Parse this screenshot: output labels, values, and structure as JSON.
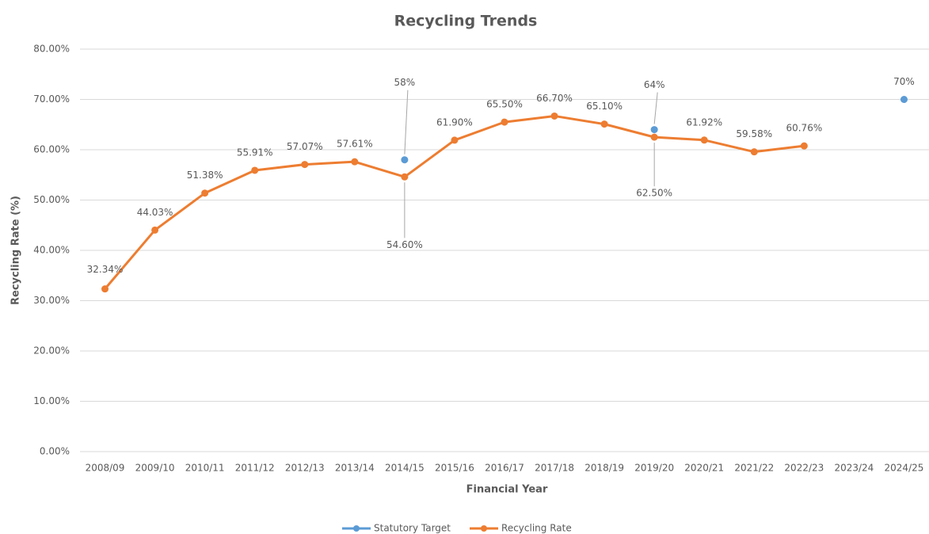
{
  "chart_data": {
    "type": "line",
    "title": "Recycling Trends",
    "x_label": "Financial Year",
    "y_label": "Recycling Rate (%)",
    "categories": [
      "2008/09",
      "2009/10",
      "2010/11",
      "2011/12",
      "2012/13",
      "2013/14",
      "2014/15",
      "2015/16",
      "2016/17",
      "2017/18",
      "2018/19",
      "2019/20",
      "2020/21",
      "2021/22",
      "2022/23",
      "2023/24",
      "2024/25"
    ],
    "series": [
      {
        "name": "Statutory Target",
        "color": "#5b9bd5",
        "values": [
          null,
          null,
          null,
          null,
          null,
          null,
          58,
          null,
          null,
          null,
          null,
          64,
          null,
          null,
          null,
          null,
          70
        ],
        "value_labels": [
          null,
          null,
          null,
          null,
          null,
          null,
          "58%",
          null,
          null,
          null,
          null,
          "64%",
          null,
          null,
          null,
          null,
          "70%"
        ]
      },
      {
        "name": "Recycling Rate",
        "color": "#ed7d31",
        "values": [
          32.34,
          44.03,
          51.38,
          55.91,
          57.07,
          57.61,
          54.6,
          61.9,
          65.5,
          66.7,
          65.1,
          62.5,
          61.92,
          59.58,
          60.76,
          null,
          null
        ],
        "value_labels": [
          "32.34%",
          "44.03%",
          "51.38%",
          "55.91%",
          "57.07%",
          "57.61%",
          "54.60%",
          "61.90%",
          "65.50%",
          "66.70%",
          "65.10%",
          "62.50%",
          "61.92%",
          "59.58%",
          "60.76%",
          null,
          null
        ]
      }
    ],
    "ylim": [
      0,
      80
    ],
    "yticks": [
      {
        "value": 0,
        "label": "0.00%"
      },
      {
        "value": 10,
        "label": "10.00%"
      },
      {
        "value": 20,
        "label": "20.00%"
      },
      {
        "value": 30,
        "label": "30.00%"
      },
      {
        "value": 40,
        "label": "40.00%"
      },
      {
        "value": 50,
        "label": "50.00%"
      },
      {
        "value": 60,
        "label": "60.00%"
      },
      {
        "value": 70,
        "label": "70.00%"
      },
      {
        "value": 80,
        "label": "80.00%"
      }
    ],
    "grid": true,
    "legend": "bottom"
  }
}
